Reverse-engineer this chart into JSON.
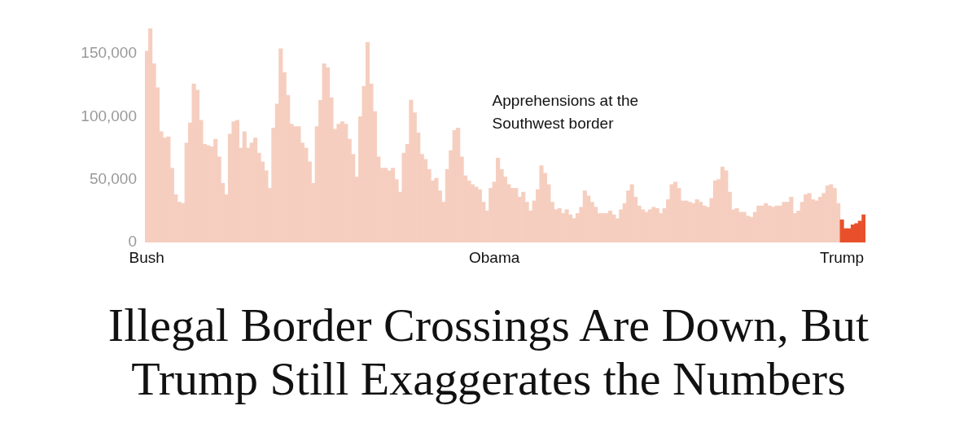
{
  "chart_data": {
    "type": "bar",
    "title": "Illegal Border Crossings Are Down, But Trump Still Exaggerates the Numbers",
    "annotations": [
      "Apprehensions at the\nSouthwest border"
    ],
    "categories": [
      "Bush",
      null,
      null,
      null,
      null,
      null,
      null,
      null,
      null,
      null,
      null,
      null,
      null,
      null,
      null,
      null,
      null,
      null,
      null,
      null,
      null,
      null,
      null,
      null,
      null,
      null,
      null,
      null,
      null,
      null,
      null,
      null,
      null,
      null,
      null,
      null,
      null,
      null,
      null,
      null,
      null,
      null,
      null,
      null,
      null,
      null,
      null,
      null,
      null,
      null,
      null,
      null,
      null,
      null,
      null,
      null,
      null,
      null,
      null,
      null,
      null,
      null,
      null,
      null,
      null,
      null,
      null,
      null,
      null,
      null,
      null,
      null,
      null,
      null,
      null,
      null,
      null,
      null,
      null,
      null,
      null,
      null,
      null,
      null,
      null,
      null,
      null,
      null,
      null,
      null,
      null,
      null,
      null,
      null,
      null,
      null,
      "Obama",
      null,
      null,
      null,
      null,
      null,
      null,
      null,
      null,
      null,
      null,
      null,
      null,
      null,
      null,
      null,
      null,
      null,
      null,
      null,
      null,
      null,
      null,
      null,
      null,
      null,
      null,
      null,
      null,
      null,
      null,
      null,
      null,
      null,
      null,
      null,
      null,
      null,
      null,
      null,
      null,
      null,
      null,
      null,
      null,
      null,
      null,
      null,
      null,
      null,
      null,
      null,
      null,
      null,
      null,
      null,
      null,
      null,
      null,
      null,
      null,
      null,
      null,
      null,
      null,
      null,
      null,
      null,
      null,
      null,
      null,
      null,
      null,
      null,
      null,
      null,
      null,
      null,
      null,
      null,
      null,
      null,
      null,
      null,
      null,
      null,
      null,
      null,
      null,
      null,
      null,
      null,
      null,
      null,
      null,
      null,
      "Trump",
      null,
      null,
      null,
      null,
      null,
      null
    ],
    "values": [
      152000,
      170000,
      142000,
      123000,
      88000,
      83000,
      84000,
      59000,
      38000,
      32000,
      31000,
      79000,
      95000,
      126000,
      121000,
      97000,
      78000,
      77000,
      76000,
      82000,
      68000,
      47000,
      38000,
      86000,
      96000,
      97000,
      75000,
      88000,
      75000,
      79000,
      83000,
      71000,
      64000,
      57000,
      43000,
      91000,
      110000,
      154000,
      135000,
      117000,
      94000,
      92000,
      92000,
      79000,
      75000,
      64000,
      47000,
      92000,
      113000,
      142000,
      139000,
      115000,
      90000,
      94000,
      96000,
      94000,
      82000,
      70000,
      52000,
      100000,
      124000,
      159000,
      126000,
      104000,
      68000,
      59000,
      59000,
      57000,
      59000,
      50000,
      40000,
      71000,
      78000,
      113000,
      103000,
      87000,
      70000,
      66000,
      58000,
      49000,
      51000,
      41000,
      32000,
      58000,
      73000,
      89000,
      91000,
      68000,
      53000,
      49000,
      46000,
      44000,
      42000,
      32000,
      25000,
      43000,
      48000,
      67000,
      58000,
      52000,
      46000,
      43000,
      43000,
      36000,
      40000,
      32000,
      25000,
      33000,
      42000,
      61000,
      55000,
      46000,
      32000,
      26000,
      27000,
      23000,
      26000,
      22000,
      19000,
      23000,
      28000,
      41000,
      37000,
      32000,
      28000,
      23000,
      23000,
      23000,
      25000,
      22000,
      19000,
      26000,
      31000,
      41000,
      46000,
      36000,
      29000,
      26000,
      24000,
      26000,
      28000,
      27000,
      23000,
      27000,
      34000,
      46000,
      48000,
      43000,
      33000,
      33000,
      32000,
      31000,
      34000,
      32000,
      29000,
      28000,
      35000,
      49000,
      50000,
      60000,
      57000,
      40000,
      26000,
      27000,
      24000,
      24000,
      21000,
      20000,
      24000,
      29000,
      29000,
      31000,
      29000,
      28000,
      29000,
      29000,
      32000,
      32000,
      36000,
      23000,
      25000,
      32000,
      38000,
      39000,
      34000,
      33000,
      36000,
      39000,
      45000,
      46000,
      43000,
      31000,
      18000,
      11000,
      11000,
      14000,
      15000,
      17000,
      22000
    ],
    "colors": [
      "#f6cebf",
      "#f6cebf",
      "#f6cebf",
      "#f6cebf",
      "#f6cebf",
      "#f6cebf",
      "#f6cebf",
      "#f6cebf",
      "#f6cebf",
      "#f6cebf",
      "#f6cebf",
      "#f6cebf",
      "#f6cebf",
      "#f6cebf",
      "#f6cebf",
      "#f6cebf",
      "#f6cebf",
      "#f6cebf",
      "#f6cebf",
      "#f6cebf",
      "#f6cebf",
      "#f6cebf",
      "#f6cebf",
      "#f6cebf",
      "#f6cebf",
      "#f6cebf",
      "#f6cebf",
      "#f6cebf",
      "#f6cebf",
      "#f6cebf",
      "#f6cebf",
      "#f6cebf",
      "#f6cebf",
      "#f6cebf",
      "#f6cebf",
      "#f6cebf",
      "#f6cebf",
      "#f6cebf",
      "#f6cebf",
      "#f6cebf",
      "#f6cebf",
      "#f6cebf",
      "#f6cebf",
      "#f6cebf",
      "#f6cebf",
      "#f6cebf",
      "#f6cebf",
      "#f6cebf",
      "#f6cebf",
      "#f6cebf",
      "#f6cebf",
      "#f6cebf",
      "#f6cebf",
      "#f6cebf",
      "#f6cebf",
      "#f6cebf",
      "#f6cebf",
      "#f6cebf",
      "#f6cebf",
      "#f6cebf",
      "#f6cebf",
      "#f6cebf",
      "#f6cebf",
      "#f6cebf",
      "#f6cebf",
      "#f6cebf",
      "#f6cebf",
      "#f6cebf",
      "#f6cebf",
      "#f6cebf",
      "#f6cebf",
      "#f6cebf",
      "#f6cebf",
      "#f6cebf",
      "#f6cebf",
      "#f6cebf",
      "#f6cebf",
      "#f6cebf",
      "#f6cebf",
      "#f6cebf",
      "#f6cebf",
      "#f6cebf",
      "#f6cebf",
      "#f6cebf",
      "#f6cebf",
      "#f6cebf",
      "#f6cebf",
      "#f6cebf",
      "#f6cebf",
      "#f6cebf",
      "#f6cebf",
      "#f6cebf",
      "#f6cebf",
      "#f6cebf",
      "#f6cebf",
      "#f6cebf",
      "#f6cebf",
      "#f6cebf",
      "#f6cebf",
      "#f6cebf",
      "#f6cebf",
      "#f6cebf",
      "#f6cebf",
      "#f6cebf",
      "#f6cebf",
      "#f6cebf",
      "#f6cebf",
      "#f6cebf",
      "#f6cebf",
      "#f6cebf",
      "#f6cebf",
      "#f6cebf",
      "#f6cebf",
      "#f6cebf",
      "#f6cebf",
      "#f6cebf",
      "#f6cebf",
      "#f6cebf",
      "#f6cebf",
      "#f6cebf",
      "#f6cebf",
      "#f6cebf",
      "#f6cebf",
      "#f6cebf",
      "#f6cebf",
      "#f6cebf",
      "#f6cebf",
      "#f6cebf",
      "#f6cebf",
      "#f6cebf",
      "#f6cebf",
      "#f6cebf",
      "#f6cebf",
      "#f6cebf",
      "#f6cebf",
      "#f6cebf",
      "#f6cebf",
      "#f6cebf",
      "#f6cebf",
      "#f6cebf",
      "#f6cebf",
      "#f6cebf",
      "#f6cebf",
      "#f6cebf",
      "#f6cebf",
      "#f6cebf",
      "#f6cebf",
      "#f6cebf",
      "#f6cebf",
      "#f6cebf",
      "#f6cebf",
      "#f6cebf",
      "#f6cebf",
      "#f6cebf",
      "#f6cebf",
      "#f6cebf",
      "#f6cebf",
      "#f6cebf",
      "#f6cebf",
      "#f6cebf",
      "#f6cebf",
      "#f6cebf",
      "#f6cebf",
      "#f6cebf",
      "#f6cebf",
      "#f6cebf",
      "#f6cebf",
      "#f6cebf",
      "#f6cebf",
      "#f6cebf",
      "#f6cebf",
      "#f6cebf",
      "#f6cebf",
      "#f6cebf",
      "#f6cebf",
      "#f6cebf",
      "#f6cebf",
      "#f6cebf",
      "#f6cebf",
      "#f6cebf",
      "#f6cebf",
      "#f6cebf",
      "#f6cebf",
      "#f6cebf",
      "#f6cebf",
      "#f6cebf",
      "#f6cebf",
      "#f6cebf",
      "#f6cebf",
      "#f6cebf",
      "#f6cebf",
      "#f6cebf",
      "#e8502b",
      "#e8502b",
      "#e8502b",
      "#e8502b",
      "#e8502b",
      "#e8502b",
      "#e8502b"
    ],
    "ylim": [
      0,
      170000
    ],
    "yticks": [
      0,
      {
        "value": 50000,
        "label": "50,000"
      },
      {
        "value": 100000,
        "label": "100,000"
      },
      {
        "value": 150000,
        "label": "150,000"
      }
    ]
  }
}
